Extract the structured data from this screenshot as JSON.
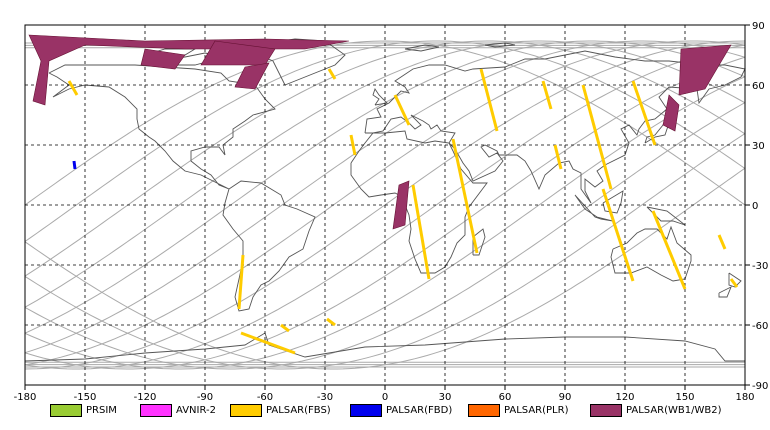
{
  "map": {
    "lon_ticks": [
      "-180",
      "-150",
      "-120",
      "-90",
      "-60",
      "-30",
      "0",
      "30",
      "60",
      "90",
      "120",
      "150",
      "180"
    ],
    "lat_ticks": [
      "90",
      "60",
      "30",
      "0",
      "-30",
      "-60",
      "-90"
    ],
    "lon_range": [
      -180,
      180
    ],
    "lat_range": [
      -90,
      90
    ],
    "grid": "dashed"
  },
  "legend": [
    {
      "label": "PRSIM",
      "color": "#99cc33"
    },
    {
      "label": "AVNIR-2",
      "color": "#ff33ff"
    },
    {
      "label": "PALSAR(FBS)",
      "color": "#ffcc00"
    },
    {
      "label": "PALSAR(FBD)",
      "color": "#0000ee"
    },
    {
      "label": "PALSAR(PLR)",
      "color": "#ff6600"
    },
    {
      "label": "PALSAR(WB1/WB2)",
      "color": "#993366"
    }
  ],
  "palsar_fbs_swaths": [
    {
      "from": [
        -158,
        62
      ],
      "to": [
        -154,
        55
      ]
    },
    {
      "from": [
        -28,
        68
      ],
      "to": [
        -25,
        63
      ]
    },
    {
      "from": [
        5,
        55
      ],
      "to": [
        12,
        40
      ]
    },
    {
      "from": [
        -17,
        35
      ],
      "to": [
        -15,
        25
      ]
    },
    {
      "from": [
        48,
        68
      ],
      "to": [
        56,
        37
      ]
    },
    {
      "from": [
        34,
        33
      ],
      "to": [
        46,
        -24
      ]
    },
    {
      "from": [
        14,
        10
      ],
      "to": [
        22,
        -37
      ]
    },
    {
      "from": [
        79,
        62
      ],
      "to": [
        83,
        48
      ]
    },
    {
      "from": [
        85,
        30
      ],
      "to": [
        88,
        18
      ]
    },
    {
      "from": [
        99,
        60
      ],
      "to": [
        113,
        8
      ]
    },
    {
      "from": [
        124,
        62
      ],
      "to": [
        135,
        30
      ]
    },
    {
      "from": [
        109,
        8
      ],
      "to": [
        124,
        -38
      ]
    },
    {
      "from": [
        134,
        -3
      ],
      "to": [
        150,
        -42
      ]
    },
    {
      "from": [
        -71,
        -25
      ],
      "to": [
        -73,
        -52
      ]
    },
    {
      "from": [
        -72,
        -64
      ],
      "to": [
        -45,
        -74
      ]
    },
    {
      "from": [
        -52,
        -60
      ],
      "to": [
        -48,
        -63
      ]
    },
    {
      "from": [
        -29,
        -57
      ],
      "to": [
        -25,
        -60
      ]
    },
    {
      "from": [
        167,
        -15
      ],
      "to": [
        170,
        -22
      ]
    },
    {
      "from": [
        173,
        -37
      ],
      "to": [
        176,
        -41
      ]
    }
  ],
  "palsar_fbd_swaths": [
    {
      "from": [
        -155.5,
        22
      ],
      "to": [
        -155,
        18
      ]
    }
  ],
  "palsar_wb_swaths": [
    [
      [
        -178,
        85
      ],
      [
        -120,
        82
      ],
      [
        -60,
        83
      ],
      [
        -18,
        82
      ],
      [
        -40,
        78
      ],
      [
        -100,
        78
      ],
      [
        -150,
        80
      ],
      [
        -168,
        72
      ],
      [
        -170,
        50
      ],
      [
        -176,
        52
      ],
      [
        -172,
        72
      ]
    ],
    [
      [
        -120,
        78
      ],
      [
        -100,
        75
      ],
      [
        -105,
        68
      ],
      [
        -122,
        70
      ]
    ],
    [
      [
        -85,
        82
      ],
      [
        -55,
        78
      ],
      [
        -60,
        70
      ],
      [
        -92,
        70
      ]
    ],
    [
      [
        -70,
        69
      ],
      [
        -58,
        71
      ],
      [
        -65,
        58
      ],
      [
        -75,
        59
      ]
    ],
    [
      [
        173,
        80
      ],
      [
        148,
        78
      ],
      [
        147,
        55
      ],
      [
        160,
        58
      ]
    ],
    [
      [
        142,
        55
      ],
      [
        147,
        50
      ],
      [
        145,
        37
      ],
      [
        139,
        40
      ]
    ],
    [
      [
        7,
        10
      ],
      [
        12,
        12
      ],
      [
        10,
        -10
      ],
      [
        4,
        -12
      ]
    ]
  ]
}
